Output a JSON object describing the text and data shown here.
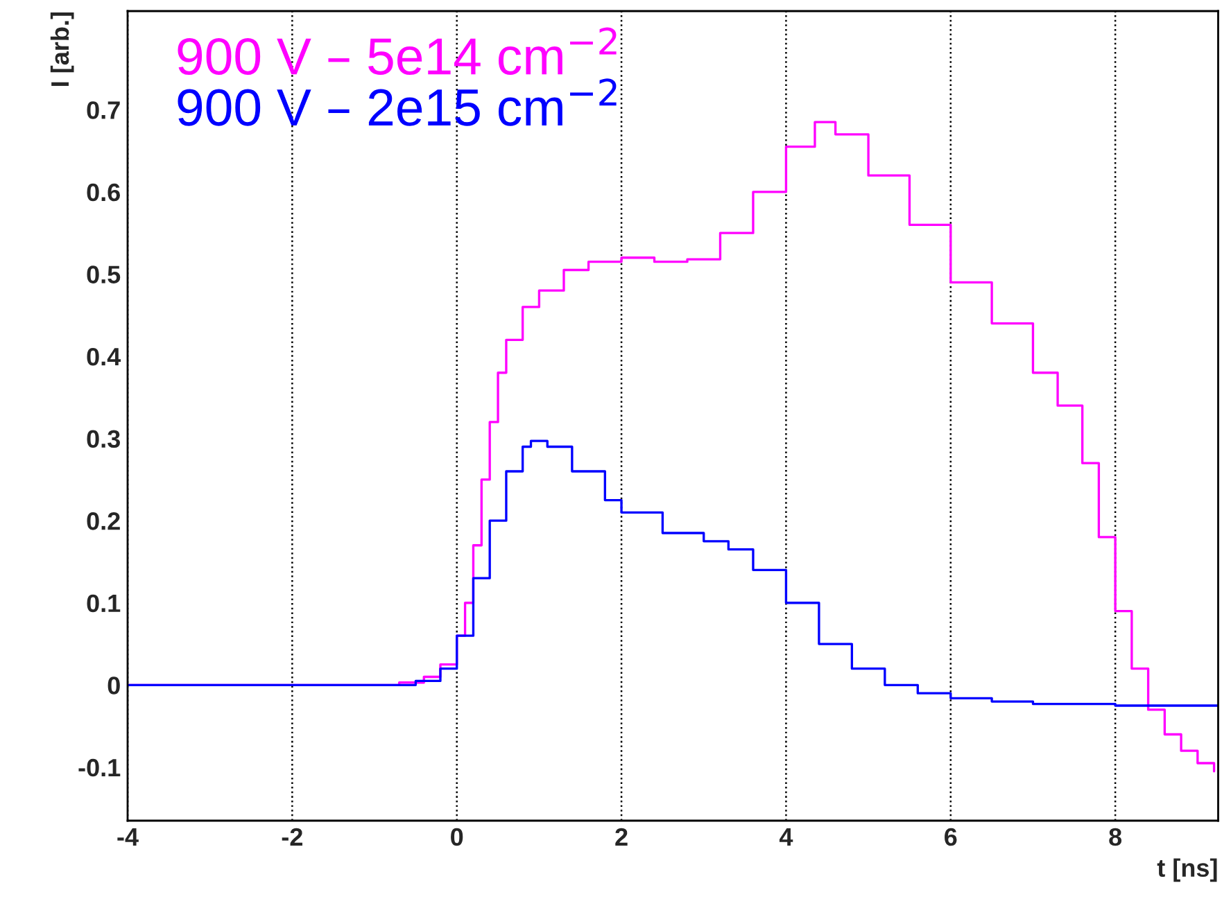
{
  "chart_data": {
    "type": "step",
    "xlabel": "t [ns]",
    "ylabel": "I [arb.]",
    "xlim": [
      -4,
      9.25
    ],
    "ylim": [
      -0.165,
      0.82
    ],
    "xticks": [
      -4,
      -2,
      0,
      2,
      4,
      6,
      8
    ],
    "yticks": [
      -0.1,
      0,
      0.1,
      0.2,
      0.3,
      0.4,
      0.5,
      0.6,
      0.7
    ],
    "grid": "x",
    "legend": "top left",
    "series": [
      {
        "name": "900 V – 5e14 cm$^{−2}$",
        "color": "#ff00ff",
        "x": [
          -4,
          -1,
          -0.7,
          -0.4,
          -0.2,
          0,
          0.1,
          0.2,
          0.3,
          0.4,
          0.5,
          0.6,
          0.8,
          1.0,
          1.3,
          1.6,
          2.0,
          2.4,
          2.8,
          3.2,
          3.6,
          4.0,
          4.35,
          4.6,
          5.0,
          5.5,
          6.0,
          6.5,
          7.0,
          7.3,
          7.6,
          7.8,
          8.0,
          8.2,
          8.4,
          8.6,
          8.8,
          9.0,
          9.2
        ],
        "values": [
          0,
          0,
          0.003,
          0.01,
          0.025,
          0.06,
          0.1,
          0.17,
          0.25,
          0.32,
          0.38,
          0.42,
          0.46,
          0.48,
          0.505,
          0.515,
          0.52,
          0.515,
          0.518,
          0.55,
          0.6,
          0.655,
          0.685,
          0.67,
          0.62,
          0.56,
          0.49,
          0.44,
          0.38,
          0.34,
          0.27,
          0.18,
          0.09,
          0.02,
          -0.03,
          -0.06,
          -0.08,
          -0.095,
          -0.105
        ]
      },
      {
        "name": "900 V – 2e15 cm$^{−2}$",
        "color": "#0000ff",
        "x": [
          -4,
          -1,
          -0.5,
          -0.2,
          0,
          0.2,
          0.4,
          0.6,
          0.8,
          0.9,
          1.1,
          1.4,
          1.8,
          2.0,
          2.5,
          3.0,
          3.3,
          3.6,
          4.0,
          4.4,
          4.8,
          5.2,
          5.6,
          6.0,
          6.5,
          7.0,
          8.0,
          9.25
        ],
        "values": [
          0,
          0,
          0.005,
          0.02,
          0.06,
          0.13,
          0.2,
          0.26,
          0.29,
          0.297,
          0.29,
          0.26,
          0.225,
          0.21,
          0.185,
          0.175,
          0.165,
          0.14,
          0.1,
          0.05,
          0.02,
          0,
          -0.01,
          -0.016,
          -0.02,
          -0.023,
          -0.025,
          -0.025
        ]
      }
    ]
  }
}
